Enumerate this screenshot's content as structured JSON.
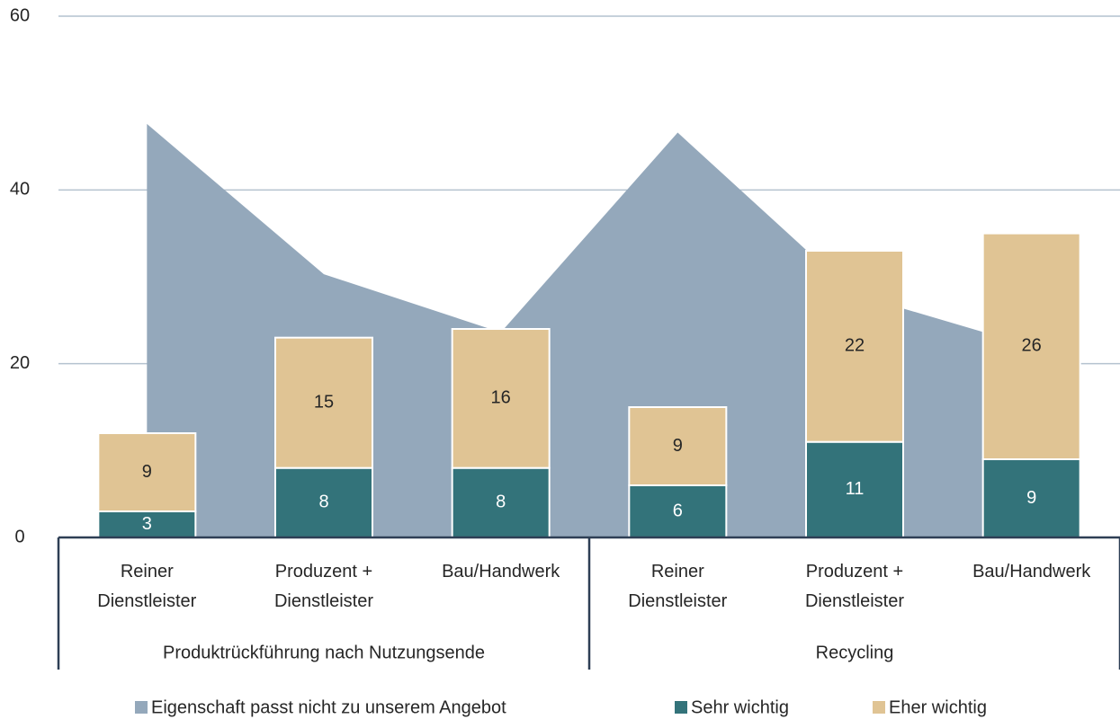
{
  "chart_data": {
    "type": "bar-area",
    "categories": [
      "Reiner\nDienstleister",
      "Produzent +\nDienstleister",
      "Bau/Handwerk",
      "Reiner\nDienstleister",
      "Produzent +\nDienstleister",
      "Bau/Handwerk"
    ],
    "groups": [
      "Produktrückführung nach Nutzungsende",
      "Recycling"
    ],
    "group_sizes": [
      3,
      3
    ],
    "series": [
      {
        "name": "Eigenschaft passt nicht zu unserem Angebot",
        "color": "#94a8bb",
        "kind": "area",
        "values": [
          47.6,
          30.3,
          23.6,
          46.6,
          28,
          22
        ]
      },
      {
        "name": "Sehr wichtig",
        "color": "#33737a",
        "kind": "bar",
        "values": [
          3,
          8,
          8,
          6,
          11,
          9
        ]
      },
      {
        "name": "Eher wichtig",
        "color": "#e0c494",
        "kind": "bar",
        "values": [
          9,
          15,
          16,
          9,
          22,
          26
        ]
      }
    ],
    "ylim": [
      0,
      60
    ],
    "yticks": [
      0,
      20,
      40,
      60
    ],
    "grid": true
  }
}
